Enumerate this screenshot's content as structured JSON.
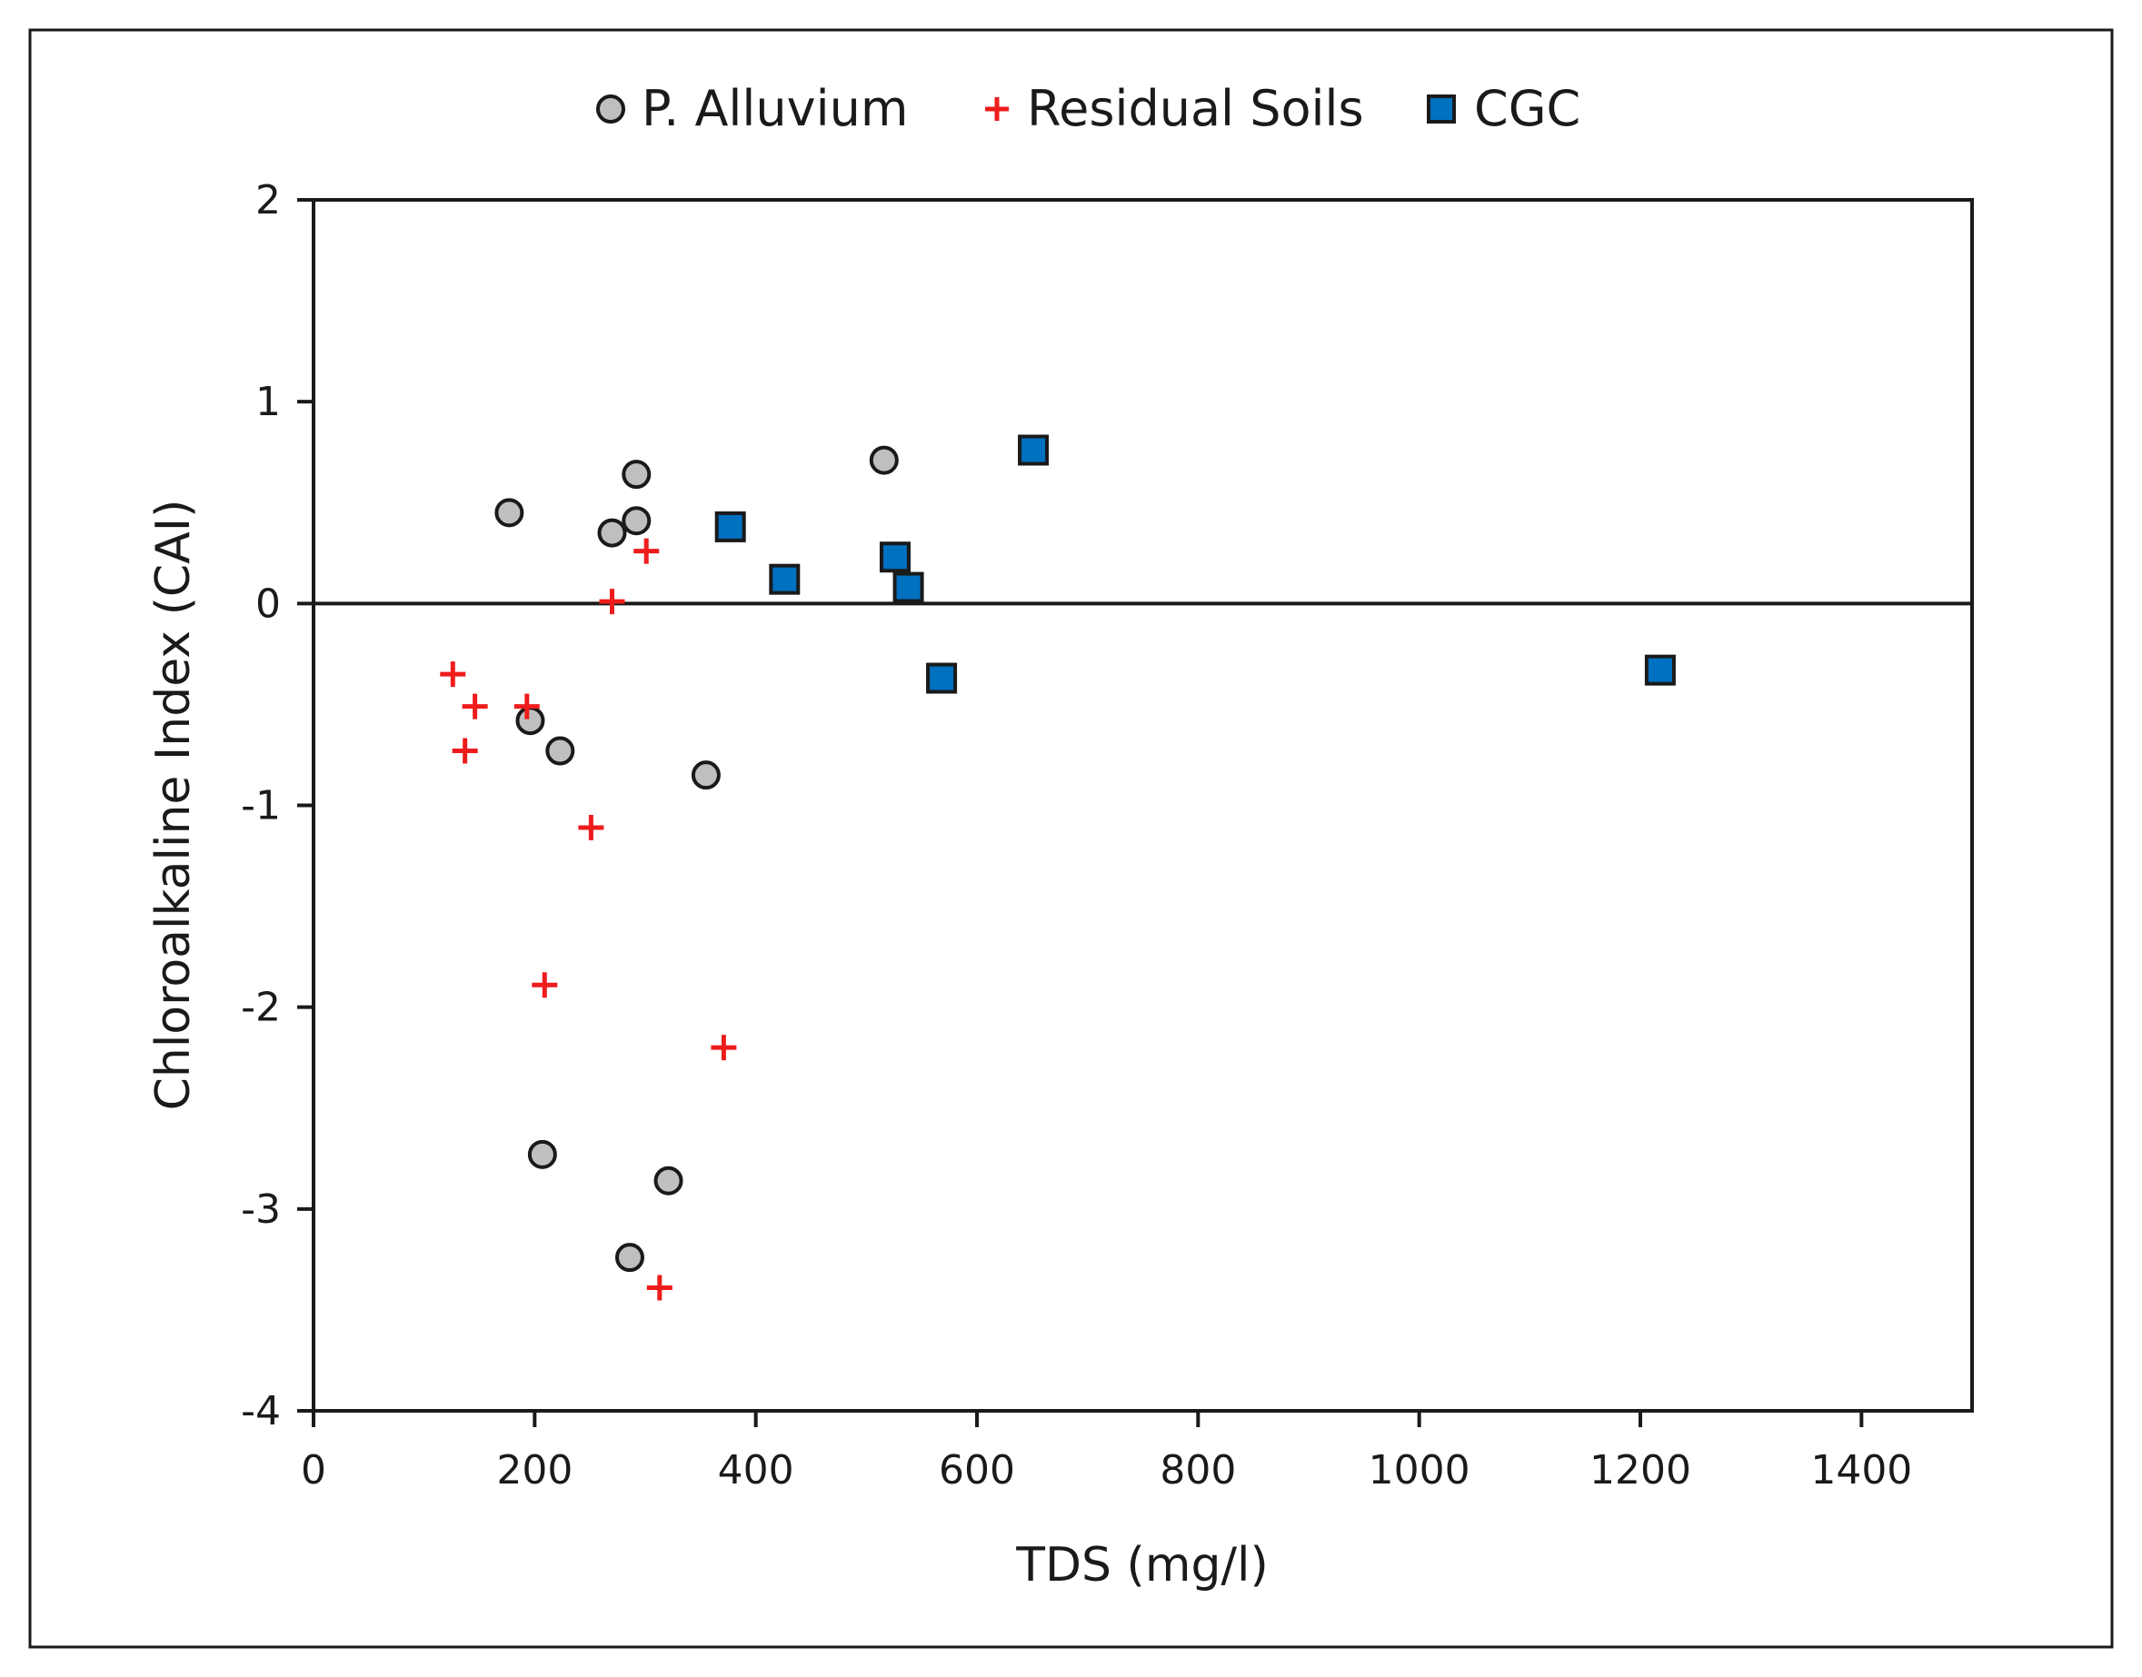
{
  "chart_data": {
    "type": "scatter",
    "title": "",
    "xlabel": "TDS (mg/l)",
    "ylabel": "Chloroalkaline Index (CAI)",
    "xlim": [
      0,
      1500
    ],
    "ylim": [
      -4,
      2
    ],
    "xticks": [
      0,
      200,
      400,
      600,
      800,
      1000,
      1200,
      1400
    ],
    "yticks": [
      2,
      1,
      0,
      -1,
      -2,
      -3,
      -4
    ],
    "xtick_labels": [
      "0",
      "200",
      "400",
      "600",
      "800",
      "1000",
      "1200",
      "1400"
    ],
    "ytick_labels": [
      "2",
      "1",
      "0",
      "-1",
      "-2",
      "-3",
      "-4"
    ],
    "reference_line_y": 0,
    "grid": false,
    "legend_position": "top-center",
    "series": [
      {
        "name": "P. Alluvium",
        "marker": "circle",
        "color": "#bfbfbf",
        "points": [
          {
            "x": 177,
            "y": 0.45
          },
          {
            "x": 270,
            "y": 0.35
          },
          {
            "x": 292,
            "y": 0.64
          },
          {
            "x": 292,
            "y": 0.41
          },
          {
            "x": 516,
            "y": 0.71
          },
          {
            "x": 196,
            "y": -0.58
          },
          {
            "x": 223,
            "y": -0.73
          },
          {
            "x": 355,
            "y": -0.85
          },
          {
            "x": 207,
            "y": -2.73
          },
          {
            "x": 321,
            "y": -2.86
          },
          {
            "x": 286,
            "y": -3.24
          }
        ]
      },
      {
        "name": "Residual Soils",
        "marker": "plus",
        "color": "#ee1c1c",
        "points": [
          {
            "x": 301,
            "y": 0.26
          },
          {
            "x": 270,
            "y": 0.01
          },
          {
            "x": 126,
            "y": -0.35
          },
          {
            "x": 146,
            "y": -0.51
          },
          {
            "x": 193,
            "y": -0.51
          },
          {
            "x": 137,
            "y": -0.73
          },
          {
            "x": 251,
            "y": -1.11
          },
          {
            "x": 209,
            "y": -1.89
          },
          {
            "x": 371,
            "y": -2.2
          },
          {
            "x": 313,
            "y": -3.39
          }
        ]
      },
      {
        "name": "CGC",
        "marker": "square",
        "color": "#0070c0",
        "points": [
          {
            "x": 651,
            "y": 0.76
          },
          {
            "x": 377,
            "y": 0.38
          },
          {
            "x": 526,
            "y": 0.23
          },
          {
            "x": 426,
            "y": 0.12
          },
          {
            "x": 538,
            "y": 0.08
          },
          {
            "x": 568,
            "y": -0.37
          },
          {
            "x": 1218,
            "y": -0.33
          }
        ]
      }
    ]
  }
}
